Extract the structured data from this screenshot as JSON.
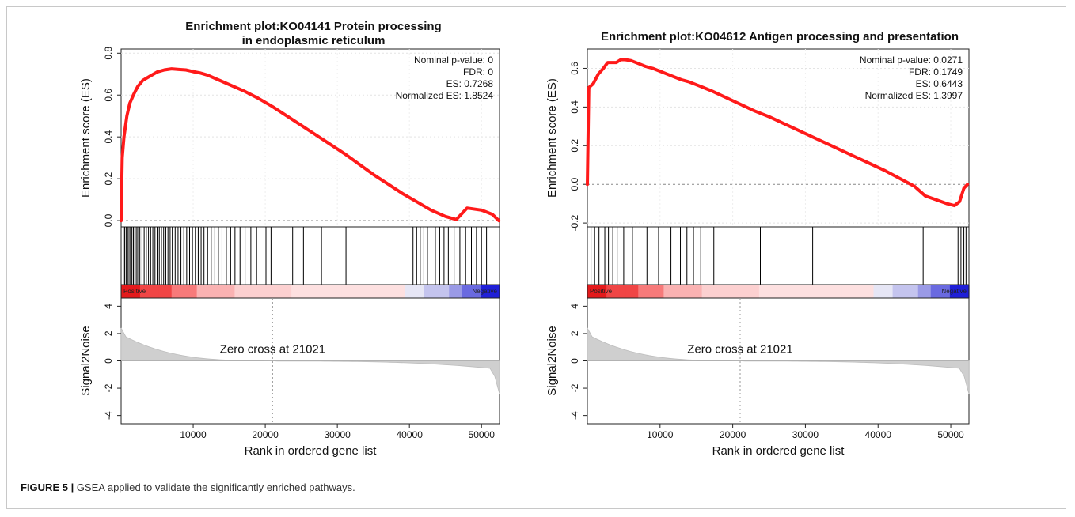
{
  "figure": {
    "caption_label": "FIGURE 5 |",
    "caption_text": " GSEA applied to validate the significantly enriched pathways."
  },
  "chart_data": [
    {
      "type": "line",
      "title_line1": "Enrichment plot:KO04141 Protein processing",
      "title_line2": "in endoplasmic reticulum",
      "ylabel": "Enrichment score (ES)",
      "ylabel_bottom": "Signal2Noise",
      "xlabel": "Rank in ordered gene list",
      "xlim": [
        0,
        52500
      ],
      "ylim": [
        -0.03,
        0.82
      ],
      "y_ticks": [
        "0.0",
        "0.2",
        "0.4",
        "0.6",
        "0.8"
      ],
      "y_tick_values": [
        0,
        0.2,
        0.4,
        0.6,
        0.8
      ],
      "x_ticks": [
        "10000",
        "20000",
        "30000",
        "40000",
        "50000"
      ],
      "x_tick_values": [
        10000,
        20000,
        30000,
        40000,
        50000
      ],
      "stats": [
        "Nominal p-value: 0",
        "FDR: 0",
        "ES: 0.7268",
        "Normalized ES: 1.8524"
      ],
      "es_curve": {
        "x": [
          0,
          150,
          400,
          800,
          1200,
          1700,
          2300,
          3000,
          4000,
          5000,
          6000,
          7000,
          8000,
          9000,
          10000,
          11000,
          12000,
          13000,
          14000,
          15000,
          17000,
          19000,
          21000,
          23000,
          25000,
          27000,
          29000,
          31000,
          33000,
          35000,
          37000,
          39000,
          41000,
          43000,
          45000,
          46500,
          48000,
          50000,
          51500,
          52400
        ],
        "y": [
          0,
          0.3,
          0.4,
          0.5,
          0.56,
          0.6,
          0.64,
          0.67,
          0.69,
          0.71,
          0.72,
          0.725,
          0.722,
          0.72,
          0.712,
          0.705,
          0.695,
          0.68,
          0.665,
          0.65,
          0.62,
          0.585,
          0.545,
          0.5,
          0.455,
          0.41,
          0.365,
          0.32,
          0.27,
          0.22,
          0.175,
          0.13,
          0.09,
          0.05,
          0.02,
          0.005,
          0.06,
          0.05,
          0.03,
          0.0
        ]
      },
      "hits": [
        300,
        500,
        700,
        900,
        1100,
        1300,
        1500,
        1700,
        1900,
        2100,
        2300,
        2600,
        2900,
        3200,
        3500,
        3800,
        4100,
        4400,
        4700,
        5000,
        5300,
        5600,
        5900,
        6200,
        6500,
        6800,
        7100,
        7500,
        7900,
        8300,
        8700,
        9100,
        9500,
        9900,
        10300,
        10700,
        11100,
        11500,
        12000,
        12500,
        13000,
        13500,
        14000,
        14600,
        15200,
        15800,
        16500,
        17200,
        18000,
        18800,
        20100,
        20800,
        23800,
        25300,
        27800,
        31200,
        40500,
        41000,
        41500,
        42000,
        42500,
        43000,
        43600,
        44200,
        44800,
        45400,
        46200,
        47000,
        47800,
        48600,
        49300,
        50000,
        50700
      ],
      "heat_labels": [
        "Positive",
        "Negative"
      ],
      "zero_cross_label": "Zero cross at 21021",
      "zero_cross": 21021,
      "s2n_ylim": [
        -4.6,
        4.6
      ],
      "s2n_ticks": [
        "-4",
        "-2",
        "0",
        "2",
        "4"
      ],
      "s2n_tick_values": [
        -4,
        -2,
        0,
        2,
        4
      ]
    },
    {
      "type": "line",
      "title_line1": "Enrichment plot:KO04612 Antigen processing and presentation",
      "title_line2": "",
      "ylabel": "Enrichment score (ES)",
      "ylabel_bottom": "Signal2Noise",
      "xlabel": "Rank in ordered gene list",
      "xlim": [
        0,
        52500
      ],
      "ylim": [
        -0.22,
        0.7
      ],
      "y_ticks": [
        "-0.2",
        "0.0",
        "0.2",
        "0.4",
        "0.6"
      ],
      "y_tick_values": [
        -0.2,
        0,
        0.2,
        0.4,
        0.6
      ],
      "x_ticks": [
        "10000",
        "20000",
        "30000",
        "40000",
        "50000"
      ],
      "x_tick_values": [
        10000,
        20000,
        30000,
        40000,
        50000
      ],
      "stats": [
        "Nominal p-value: 0.0271",
        "FDR: 0.1749",
        "ES: 0.6443",
        "Normalized ES: 1.3997"
      ],
      "es_curve": {
        "x": [
          0,
          200,
          800,
          1500,
          2200,
          2800,
          3400,
          4000,
          4600,
          5200,
          6000,
          7000,
          8000,
          9000,
          10000,
          11000,
          12000,
          13000,
          14000,
          15000,
          17000,
          19000,
          21000,
          23000,
          25000,
          27000,
          29000,
          31000,
          33000,
          35000,
          37000,
          39000,
          41000,
          43000,
          45000,
          46500,
          48000,
          49500,
          50500,
          51200,
          51800,
          52300
        ],
        "y": [
          0,
          0.5,
          0.52,
          0.57,
          0.6,
          0.63,
          0.63,
          0.63,
          0.645,
          0.645,
          0.64,
          0.625,
          0.61,
          0.6,
          0.585,
          0.57,
          0.555,
          0.54,
          0.53,
          0.515,
          0.485,
          0.45,
          0.415,
          0.38,
          0.35,
          0.315,
          0.28,
          0.245,
          0.21,
          0.175,
          0.14,
          0.105,
          0.07,
          0.03,
          -0.01,
          -0.06,
          -0.08,
          -0.1,
          -0.11,
          -0.09,
          -0.02,
          0.0
        ]
      },
      "hits": [
        500,
        1000,
        1600,
        2400,
        2900,
        3500,
        4100,
        5000,
        6200,
        8200,
        9800,
        11500,
        12800,
        13700,
        14600,
        15600,
        17400,
        23800,
        31000,
        46200,
        47000,
        51000,
        51400,
        51800,
        52100
      ],
      "heat_labels": [
        "Positive",
        "Negative"
      ],
      "zero_cross_label": "Zero cross at 21021",
      "zero_cross": 21021,
      "s2n_ylim": [
        -4.6,
        4.6
      ],
      "s2n_ticks": [
        "-4",
        "-2",
        "0",
        "2",
        "4"
      ],
      "s2n_tick_values": [
        -4,
        -2,
        0,
        2,
        4
      ]
    }
  ]
}
